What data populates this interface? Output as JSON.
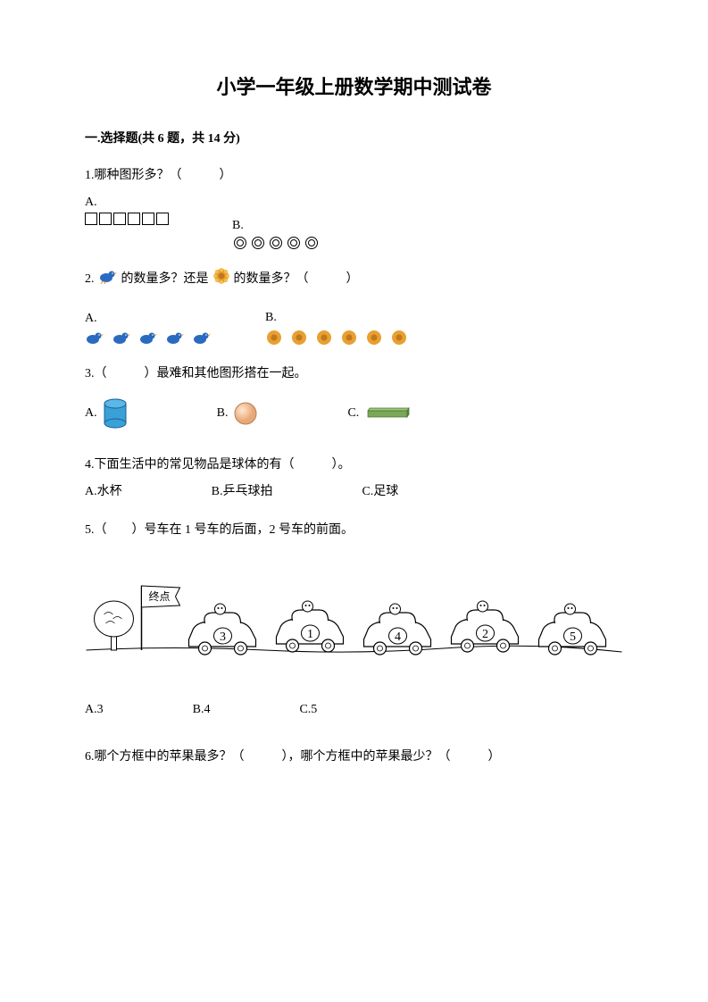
{
  "title": "小学一年级上册数学期中测试卷",
  "section1": {
    "header": "一.选择题(共 6 题，共 14 分)",
    "q1": {
      "text": "1.哪种图形多？（　　　）",
      "optA": "A.",
      "optB": "B.",
      "squares_count": 6,
      "circles_count": 5,
      "square_color": "#000000",
      "circle_color": "#000000"
    },
    "q2": {
      "prefix": "2.",
      "text1": "的数量多？还是",
      "text2": "的数量多？（　　　）",
      "optA": "A.",
      "optB": "B.",
      "birds_count": 5,
      "flowers_count": 6,
      "bird_color": "#2a6bbf",
      "bird_accent": "#d89030",
      "flower_petal": "#e8a030",
      "flower_center": "#c07820"
    },
    "q3": {
      "text": "3.（　　　）最难和其他图形搭在一起。",
      "optA": "A.",
      "optB": "B.",
      "optC": "C.",
      "cylinder_fill": "#3aa0d8",
      "cylinder_top": "#5ab8e8",
      "sphere_fill": "#f5c49a",
      "sphere_highlight": "#ffe8d0",
      "cuboid_fill": "#7aa858",
      "cuboid_side": "#5a8840"
    },
    "q4": {
      "text": "4.下面生活中的常见物品是球体的有（　　　）。",
      "optA": "A.水杯",
      "optB": "B.乒乓球拍",
      "optC": "C.足球"
    },
    "q5": {
      "text": "5.（　　）号车在 1 号车的后面，2 号车的前面。",
      "flag_text": "终点",
      "car_numbers": [
        "3",
        "1",
        "4",
        "2",
        "5"
      ],
      "optA": "A.3",
      "optB": "B.4",
      "optC": "C.5",
      "car_fill": "#ffffff",
      "car_stroke": "#000000"
    },
    "q6": {
      "text": "6.哪个方框中的苹果最多？（　　　），哪个方框中的苹果最少？（　　　）"
    }
  }
}
